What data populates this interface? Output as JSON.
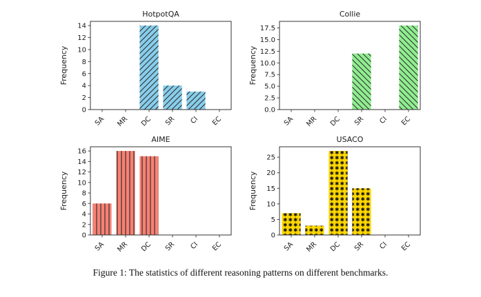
{
  "caption": "Figure 1: The statistics of different reasoning patterns on different benchmarks.",
  "style": {
    "background": "#ffffff",
    "axis_color": "#333333",
    "text_color": "#1a1a1a"
  },
  "chart_data": [
    {
      "type": "bar",
      "title": "HotpotQA",
      "xlabel": "",
      "ylabel": "Frequency",
      "categories": [
        "SA",
        "MR",
        "DC",
        "SR",
        "CI",
        "EC"
      ],
      "values": [
        0,
        0,
        14,
        4,
        3,
        0
      ],
      "yticks": [
        0,
        2,
        4,
        6,
        8,
        10,
        12,
        14
      ],
      "ytick_labels": [
        "0",
        "2",
        "4",
        "6",
        "8",
        "10",
        "12",
        "14"
      ],
      "ylim": [
        0,
        14.7
      ],
      "bar_color": "#87CEEB",
      "hatch": "/",
      "hatch_color": "#2f2f2f",
      "grid": false,
      "legend_position": "none"
    },
    {
      "type": "bar",
      "title": "Collie",
      "xlabel": "",
      "ylabel": "Frequency",
      "categories": [
        "SA",
        "MR",
        "DC",
        "SR",
        "CI",
        "EC"
      ],
      "values": [
        0,
        0,
        0,
        12,
        0,
        18
      ],
      "yticks": [
        0,
        2.5,
        5,
        7.5,
        10,
        12.5,
        15,
        17.5
      ],
      "ytick_labels": [
        "0.0",
        "2.5",
        "5.0",
        "7.5",
        "10.0",
        "12.5",
        "15.0",
        "17.5"
      ],
      "ylim": [
        0,
        18.9
      ],
      "bar_color": "#90EE90",
      "hatch": "\\",
      "hatch_color": "#2f2f2f",
      "grid": false,
      "legend_position": "none"
    },
    {
      "type": "bar",
      "title": "AIME",
      "xlabel": "",
      "ylabel": "Frequency",
      "categories": [
        "SA",
        "MR",
        "DC",
        "SR",
        "CI",
        "EC"
      ],
      "values": [
        6,
        16,
        15,
        0,
        0,
        0
      ],
      "yticks": [
        0,
        2,
        4,
        6,
        8,
        10,
        12,
        14,
        16
      ],
      "ytick_labels": [
        "0",
        "2",
        "4",
        "6",
        "8",
        "10",
        "12",
        "14",
        "16"
      ],
      "ylim": [
        0,
        16.8
      ],
      "bar_color": "#FA8072",
      "hatch": "|",
      "hatch_color": "#3a3a3a",
      "grid": false,
      "legend_position": "none"
    },
    {
      "type": "bar",
      "title": "USACO",
      "xlabel": "",
      "ylabel": "Frequency",
      "categories": [
        "SA",
        "MR",
        "DC",
        "SR",
        "CI",
        "EC"
      ],
      "values": [
        7,
        3,
        27,
        15,
        0,
        0
      ],
      "yticks": [
        0,
        5,
        10,
        15,
        20,
        25
      ],
      "ytick_labels": [
        "0",
        "5",
        "10",
        "15",
        "20",
        "25"
      ],
      "ylim": [
        0,
        28.35
      ],
      "bar_color": "#FFD700",
      "hatch": "*",
      "hatch_color": "#111111",
      "grid": false,
      "legend_position": "none"
    }
  ]
}
